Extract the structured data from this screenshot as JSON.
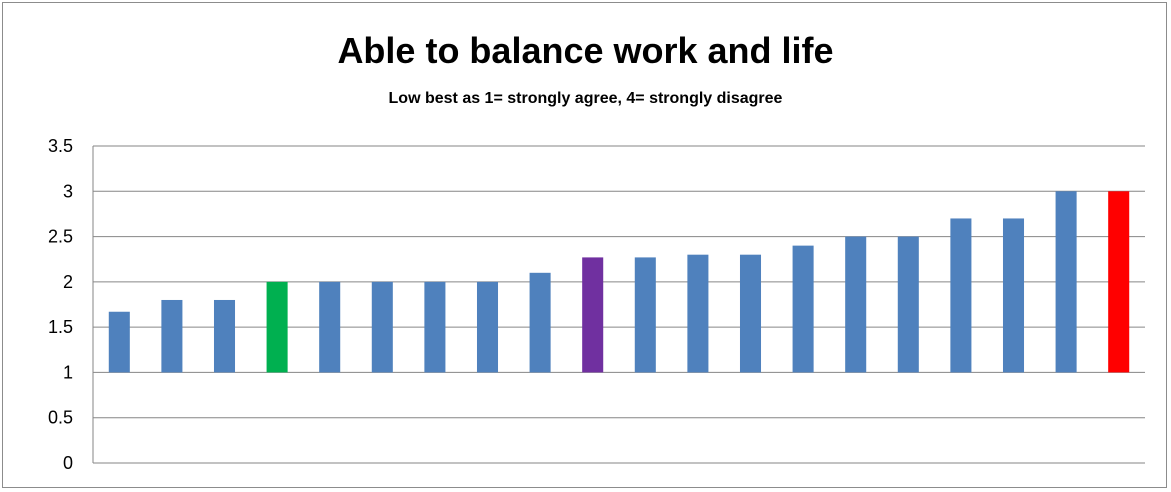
{
  "chart_data": {
    "type": "bar",
    "title": "Able to balance work and life",
    "subtitle": "Low best as 1= strongly agree, 4= strongly disagree",
    "xlabel": "",
    "ylabel": "",
    "ylim": [
      0,
      3.5
    ],
    "yticks": [
      "0",
      "0.5",
      "1",
      "1.5",
      "2",
      "2.5",
      "3",
      "3.5"
    ],
    "baseline": 1,
    "grid": true,
    "legend": "none",
    "values": [
      1.67,
      1.8,
      1.8,
      2.0,
      2.0,
      2.0,
      2.0,
      2.0,
      2.1,
      2.27,
      2.27,
      2.3,
      2.3,
      2.4,
      2.5,
      2.5,
      2.7,
      2.7,
      3.0,
      3.0
    ],
    "colors": [
      "#4f81bd",
      "#4f81bd",
      "#4f81bd",
      "#00b050",
      "#4f81bd",
      "#4f81bd",
      "#4f81bd",
      "#4f81bd",
      "#4f81bd",
      "#7030a0",
      "#4f81bd",
      "#4f81bd",
      "#4f81bd",
      "#4f81bd",
      "#4f81bd",
      "#4f81bd",
      "#4f81bd",
      "#4f81bd",
      "#4f81bd",
      "#ff0000"
    ]
  }
}
